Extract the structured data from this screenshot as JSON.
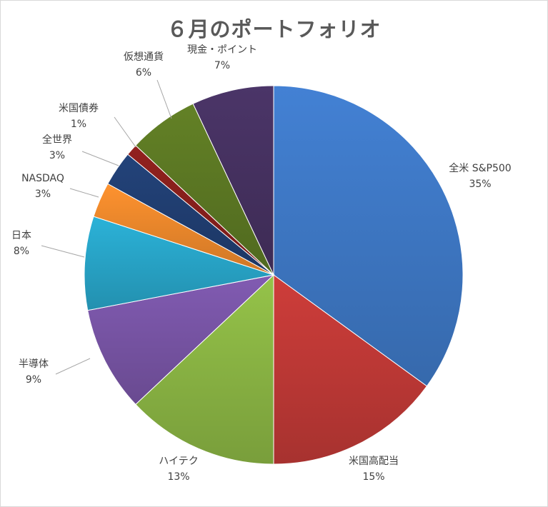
{
  "chart_data": {
    "type": "pie",
    "title": "６月のポートフォリオ",
    "start_angle_deg": 0,
    "direction": "clockwise",
    "slices": [
      {
        "label": "全米 S&P500",
        "value": 35,
        "pct_label": "35%",
        "color": "#3f7ac8"
      },
      {
        "label": "米国高配当",
        "value": 15,
        "pct_label": "15%",
        "color": "#c23a37"
      },
      {
        "label": "ハイテク",
        "value": 13,
        "pct_label": "13%",
        "color": "#8db845"
      },
      {
        "label": "半導体",
        "value": 9,
        "pct_label": "9%",
        "color": "#7a56a8"
      },
      {
        "label": "日本",
        "value": 8,
        "pct_label": "8%",
        "color": "#29a8cc"
      },
      {
        "label": "NASDAQ",
        "value": 3,
        "pct_label": "3%",
        "color": "#f08a2c"
      },
      {
        "label": "全世界",
        "value": 3,
        "pct_label": "3%",
        "color": "#213f73"
      },
      {
        "label": "米国債券",
        "value": 1,
        "pct_label": "1%",
        "color": "#8a1f1c"
      },
      {
        "label": "仮想通貨",
        "value": 6,
        "pct_label": "6%",
        "color": "#5d7a24"
      },
      {
        "label": "現金・ポイント",
        "value": 7,
        "pct_label": "7%",
        "color": "#473262"
      }
    ]
  }
}
